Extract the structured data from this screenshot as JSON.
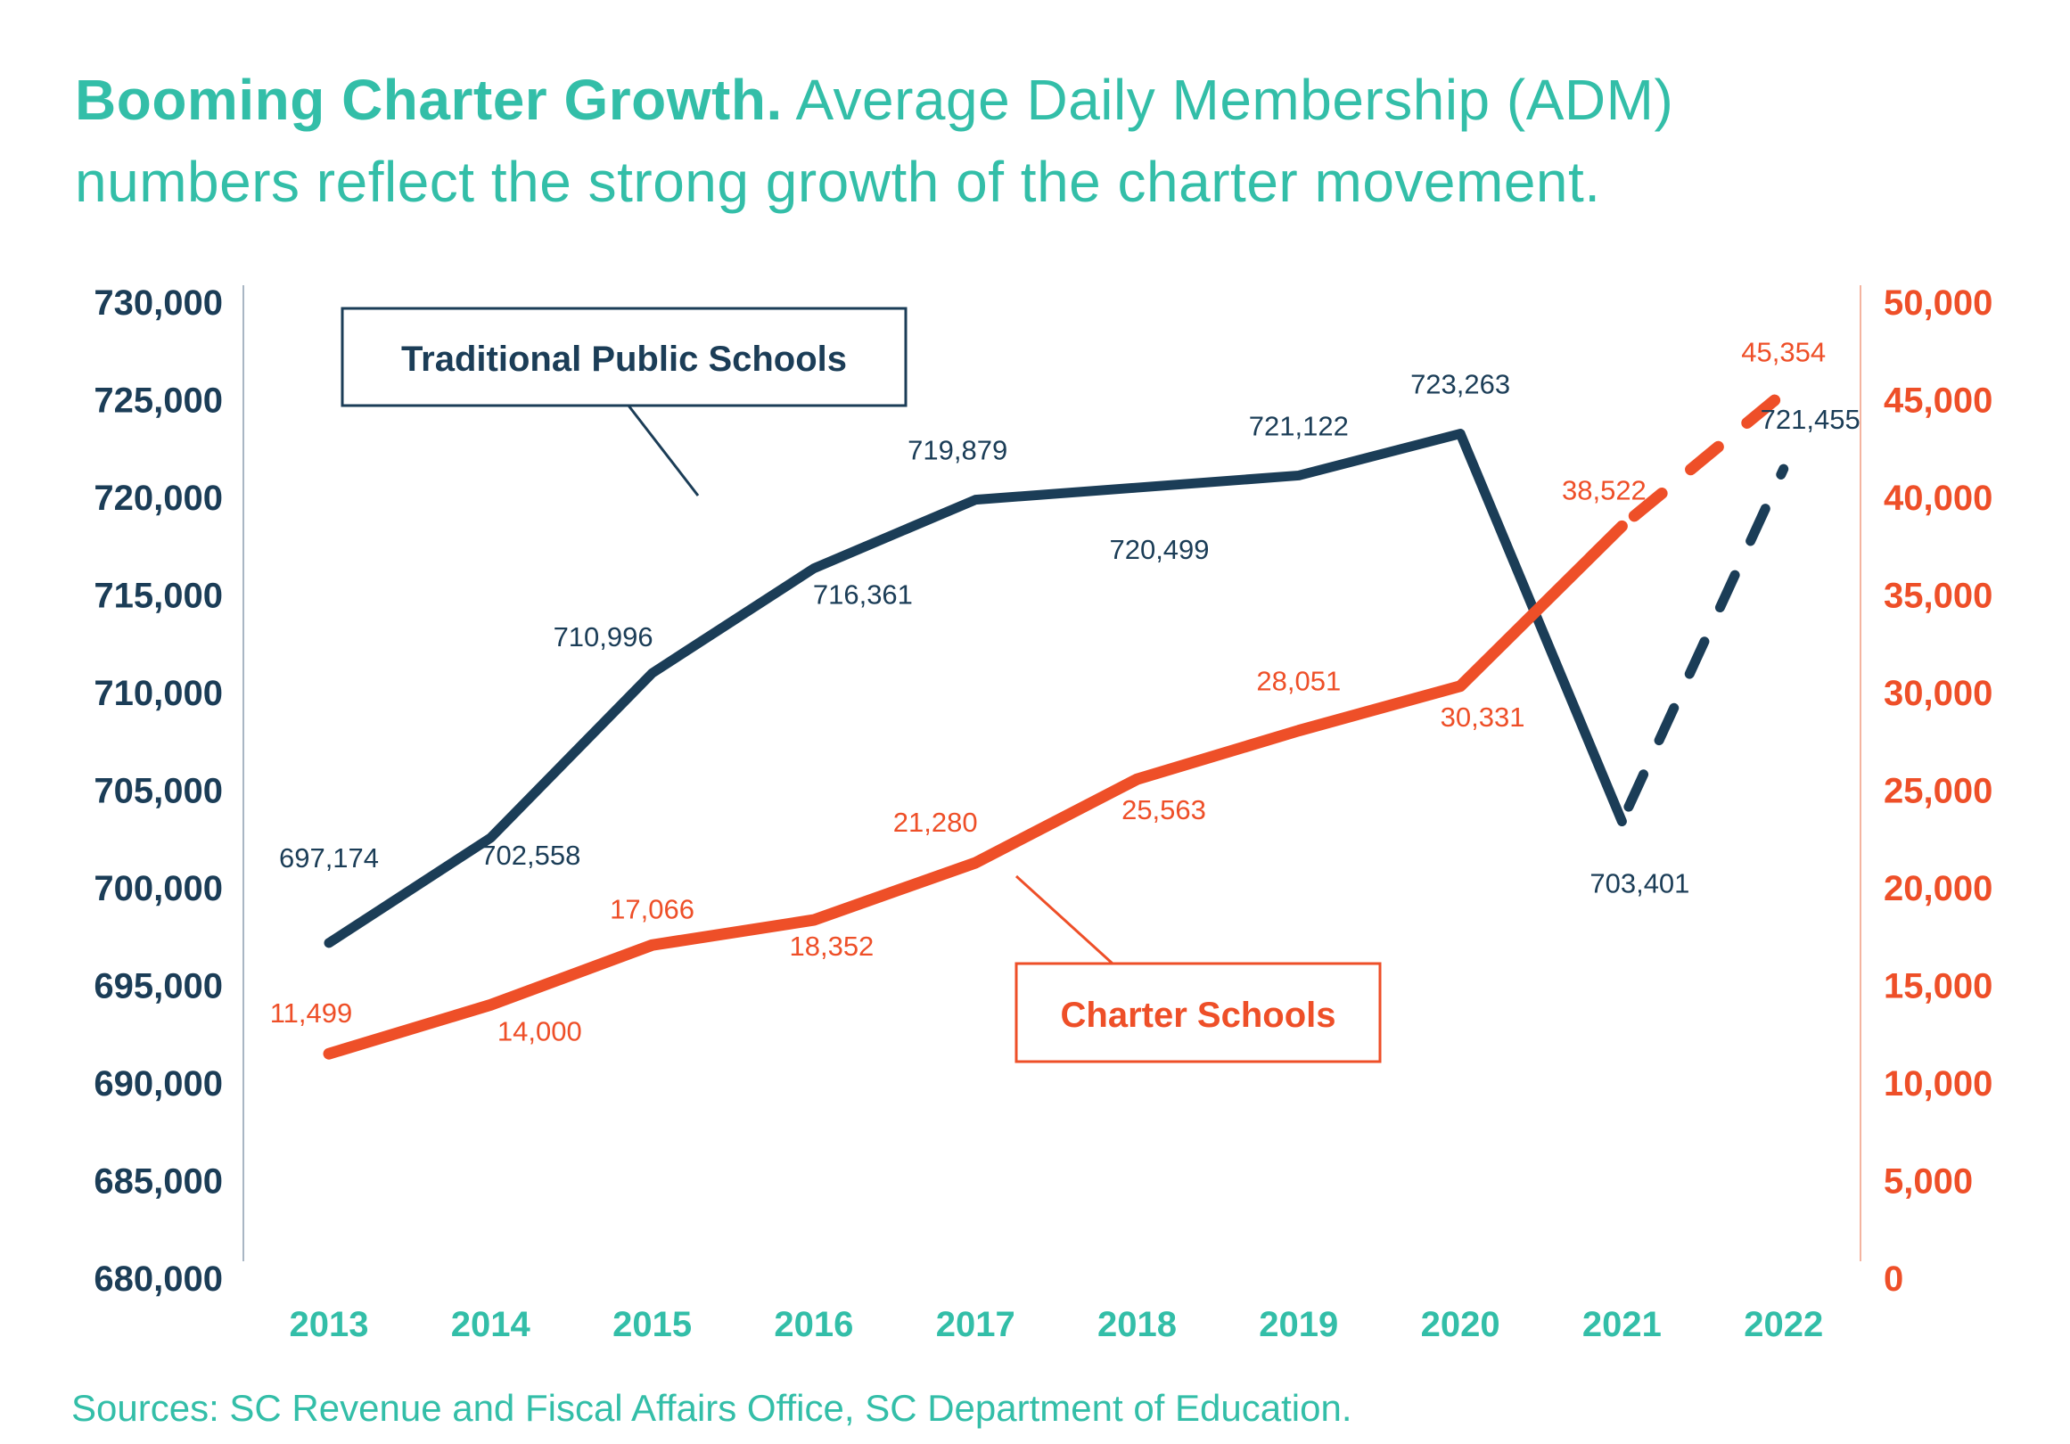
{
  "title": {
    "bold": "Booming Charter Growth.",
    "line1_rest": " Average Daily Membership (ADM)",
    "line2": "numbers reflect the strong growth of the charter movement."
  },
  "sources": "Sources: SC Revenue and Fiscal Affairs Office, SC Department of Education.",
  "colors": {
    "traditional": "#1b3d57",
    "charter": "#ee4f28",
    "accent": "#33bea8",
    "left_axis_line": "#a9b6c4",
    "right_axis_line": "#f4b4a0"
  },
  "chart_data": {
    "type": "line",
    "title": "Booming Charter Growth. Average Daily Membership (ADM) numbers reflect the strong growth of the charter movement.",
    "xlabel": "",
    "ylabel_left": "",
    "ylabel_right": "",
    "categories": [
      "2013",
      "2014",
      "2015",
      "2016",
      "2017",
      "2018",
      "2019",
      "2020",
      "2021",
      "2022"
    ],
    "y_left": {
      "range": [
        680000,
        730000
      ],
      "ticks": [
        "730,000",
        "725,000",
        "720,000",
        "715,000",
        "710,000",
        "705,000",
        "700,000",
        "695,000",
        "690,000",
        "685,000",
        "680,000"
      ],
      "tick_values": [
        730000,
        725000,
        720000,
        715000,
        710000,
        705000,
        700000,
        695000,
        690000,
        685000,
        680000
      ]
    },
    "y_right": {
      "range": [
        0,
        50000
      ],
      "ticks": [
        "50,000",
        "45,000",
        "40,000",
        "35,000",
        "30,000",
        "25,000",
        "20,000",
        "15,000",
        "10,000",
        "5,000",
        "0"
      ],
      "tick_values": [
        50000,
        45000,
        40000,
        35000,
        30000,
        25000,
        20000,
        15000,
        10000,
        5000,
        0
      ]
    },
    "grid": false,
    "series": [
      {
        "name": "Traditional Public Schools",
        "axis": "left",
        "values": [
          697174,
          702558,
          710996,
          716361,
          719879,
          720499,
          721122,
          723263,
          703401,
          721455
        ],
        "labels": [
          "697,174",
          "702,558",
          "710,996",
          "716,361",
          "719,879",
          "720,499",
          "721,122",
          "723,263",
          "703,401",
          "721,455"
        ],
        "dashed_from_index": 8
      },
      {
        "name": "Charter Schools",
        "axis": "right",
        "values": [
          11499,
          14000,
          17066,
          18352,
          21280,
          25563,
          28051,
          30331,
          38522,
          45354
        ],
        "labels": [
          "11,499",
          "14,000",
          "17,066",
          "18,352",
          "21,280",
          "25,563",
          "28,051",
          "30,331",
          "38,522",
          "45,354"
        ],
        "dashed_from_index": 8
      }
    ],
    "callouts": [
      {
        "text": "Traditional Public Schools",
        "series": "Traditional Public Schools"
      },
      {
        "text": "Charter Schools",
        "series": "Charter Schools"
      }
    ]
  }
}
